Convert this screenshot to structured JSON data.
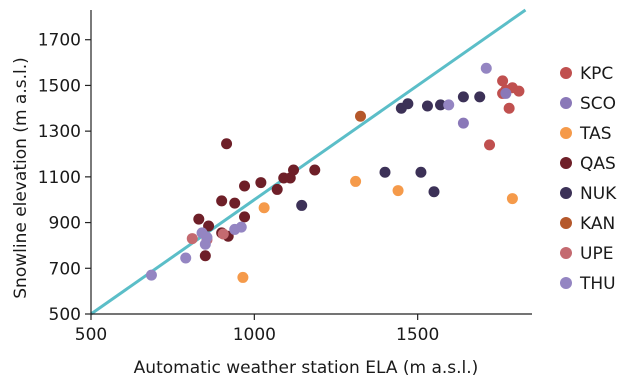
{
  "chart_data": {
    "type": "scatter",
    "title": "",
    "xlabel": "Automatic weather station ELA (m a.s.l.)",
    "ylabel": "Snowline elevation (m a.s.l.)",
    "xlim": [
      500,
      1850
    ],
    "ylim": [
      500,
      1830
    ],
    "xticks": [
      500,
      1000,
      1500
    ],
    "yticks": [
      500,
      700,
      900,
      1100,
      1300,
      1500,
      1700
    ],
    "grid": false,
    "legend_position": "right",
    "reference_line": {
      "x": [
        500,
        1830
      ],
      "y": [
        500,
        1830
      ],
      "color": "#5bbec8"
    },
    "series": [
      {
        "name": "KPC",
        "color": "#c0504f",
        "points": [
          [
            1760,
            1520
          ],
          [
            1770,
            1480
          ],
          [
            1790,
            1490
          ],
          [
            1810,
            1475
          ],
          [
            1780,
            1400
          ],
          [
            1720,
            1240
          ],
          [
            1760,
            1465
          ]
        ]
      },
      {
        "name": "SCO",
        "color": "#8a78b8",
        "points": [
          [
            1640,
            1335
          ],
          [
            1770,
            1465
          ]
        ]
      },
      {
        "name": "TAS",
        "color": "#f59a4a",
        "points": [
          [
            1310,
            1080
          ],
          [
            1440,
            1040
          ],
          [
            1790,
            1005
          ],
          [
            1030,
            965
          ],
          [
            965,
            660
          ]
        ]
      },
      {
        "name": "QAS",
        "color": "#6e1f28",
        "points": [
          [
            830,
            915
          ],
          [
            860,
            885
          ],
          [
            900,
            855
          ],
          [
            920,
            840
          ],
          [
            940,
            985
          ],
          [
            900,
            995
          ],
          [
            970,
            1060
          ],
          [
            1020,
            1075
          ],
          [
            1070,
            1045
          ],
          [
            1090,
            1095
          ],
          [
            1110,
            1095
          ],
          [
            1120,
            1130
          ],
          [
            1185,
            1130
          ],
          [
            970,
            925
          ],
          [
            850,
            755
          ],
          [
            915,
            1245
          ]
        ]
      },
      {
        "name": "NUK",
        "color": "#3c3157",
        "points": [
          [
            1450,
            1400
          ],
          [
            1470,
            1420
          ],
          [
            1530,
            1410
          ],
          [
            1570,
            1415
          ],
          [
            1640,
            1450
          ],
          [
            1690,
            1450
          ],
          [
            1400,
            1120
          ],
          [
            1510,
            1120
          ],
          [
            1550,
            1035
          ],
          [
            1145,
            975
          ]
        ]
      },
      {
        "name": "KAN",
        "color": "#b5582b",
        "points": [
          [
            1325,
            1365
          ]
        ]
      },
      {
        "name": "UPE",
        "color": "#c46a70",
        "points": [
          [
            810,
            830
          ],
          [
            855,
            825
          ],
          [
            905,
            850
          ]
        ]
      },
      {
        "name": "THU",
        "color": "#9485c2",
        "points": [
          [
            685,
            670
          ],
          [
            790,
            745
          ],
          [
            850,
            805
          ],
          [
            855,
            835
          ],
          [
            940,
            870
          ],
          [
            960,
            880
          ],
          [
            1710,
            1575
          ],
          [
            1595,
            1415
          ],
          [
            840,
            855
          ]
        ]
      }
    ]
  }
}
